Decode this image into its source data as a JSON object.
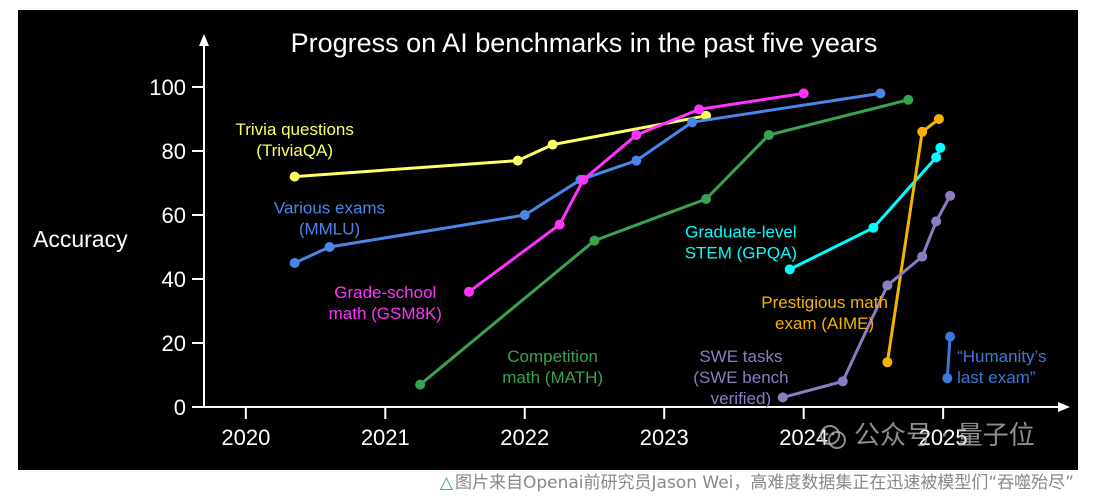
{
  "chart_data": {
    "type": "line",
    "title": "Progress on AI benchmarks in the past five years",
    "ylabel": "Accuracy",
    "xlabel": "",
    "xlim": [
      2019.7,
      2025.25
    ],
    "ylim": [
      0,
      100
    ],
    "x_ticks": [
      2020,
      2021,
      2022,
      2023,
      2024,
      2025
    ],
    "x_tick_labels": [
      "2020",
      "2021",
      "2022",
      "2023",
      "2024",
      "2025"
    ],
    "y_ticks": [
      0,
      20,
      40,
      60,
      80,
      100
    ],
    "y_tick_labels": [
      "0",
      "20",
      "40",
      "60",
      "80",
      "100"
    ],
    "grid": false,
    "series": [
      {
        "name": "TriviaQA",
        "label_lines": [
          "Trivia questions",
          "(TriviaQA)"
        ],
        "color": "#ffff66",
        "points": [
          [
            2020.35,
            72
          ],
          [
            2021.95,
            77
          ],
          [
            2022.2,
            82
          ],
          [
            2023.3,
            91
          ]
        ],
        "label_at": [
          2020.35,
          85,
          "center"
        ]
      },
      {
        "name": "MMLU",
        "label_lines": [
          "Various exams",
          "(MMLU)"
        ],
        "color": "#4a86e8",
        "points": [
          [
            2020.35,
            45
          ],
          [
            2020.6,
            50
          ],
          [
            2022.0,
            60
          ],
          [
            2022.4,
            71
          ],
          [
            2022.8,
            77
          ],
          [
            2023.2,
            89
          ],
          [
            2024.55,
            98
          ]
        ],
        "label_at": [
          2020.6,
          60.5,
          "center"
        ]
      },
      {
        "name": "GSM8K",
        "label_lines": [
          "Grade-school",
          "math (GSM8K)"
        ],
        "color": "#ff33ff",
        "points": [
          [
            2021.6,
            36
          ],
          [
            2022.25,
            57
          ],
          [
            2022.42,
            71
          ],
          [
            2022.8,
            85
          ],
          [
            2023.25,
            93
          ],
          [
            2024.0,
            98
          ]
        ],
        "label_at": [
          2021.0,
          34,
          "center"
        ]
      },
      {
        "name": "MATH",
        "label_lines": [
          "Competition",
          "math (MATH)"
        ],
        "color": "#3aa34f",
        "points": [
          [
            2021.25,
            7
          ],
          [
            2022.5,
            52
          ],
          [
            2023.3,
            65
          ],
          [
            2023.75,
            85
          ],
          [
            2024.75,
            96
          ]
        ],
        "label_at": [
          2022.2,
          14,
          "center"
        ]
      },
      {
        "name": "GPQA",
        "label_lines": [
          "Graduate-level",
          "STEM (GPQA)"
        ],
        "color": "#00ffff",
        "points": [
          [
            2023.9,
            43
          ],
          [
            2024.5,
            56
          ],
          [
            2024.95,
            78
          ],
          [
            2024.98,
            81
          ]
        ],
        "label_at": [
          2023.55,
          53,
          "center"
        ]
      },
      {
        "name": "AIME",
        "label_lines": [
          "Prestigious math",
          "exam (AIME)"
        ],
        "color": "#f4b400",
        "points": [
          [
            2024.6,
            14
          ],
          [
            2024.85,
            86
          ],
          [
            2024.97,
            90
          ]
        ],
        "label_at": [
          2024.15,
          31,
          "center"
        ]
      },
      {
        "name": "SWE-bench",
        "label_lines": [
          "SWE tasks",
          "(SWE bench",
          "verified)"
        ],
        "color": "#8e7cc3",
        "points": [
          [
            2023.85,
            3
          ],
          [
            2024.28,
            8
          ],
          [
            2024.6,
            38
          ],
          [
            2024.85,
            47
          ],
          [
            2024.95,
            58
          ],
          [
            2025.05,
            66
          ]
        ],
        "label_at": [
          2023.55,
          14,
          "center"
        ]
      },
      {
        "name": "Humanity's Last Exam",
        "label_lines": [
          "“Humanity’s",
          "last exam”"
        ],
        "color": "#3c78d8",
        "points": [
          [
            2025.03,
            9
          ],
          [
            2025.05,
            22
          ]
        ],
        "label_at": [
          2025.1,
          14,
          "start"
        ]
      }
    ]
  },
  "caption": "图片来自Openai前研究员Jason Wei，高难度数据集正在迅速被模型们“吞噬殆尽”",
  "watermark": "公众号 · 量子位"
}
